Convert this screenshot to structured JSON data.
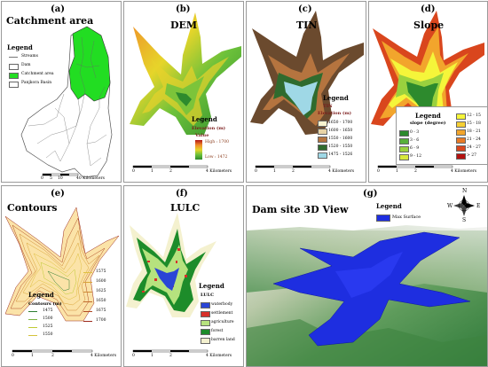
{
  "panels": {
    "a": {
      "letter": "(a)",
      "title": "Catchment area",
      "legend_title": "Legend",
      "legend": [
        "Streams",
        "Dam",
        "Catchment area",
        "Panjkora Basin"
      ],
      "scale": "40 Kilometers",
      "scale_ticks": [
        "0",
        "5",
        "10",
        "20"
      ]
    },
    "b": {
      "letter": "(b)",
      "title": "DEM",
      "legend_title": "Legend",
      "legend_sub": "Elevation (m)",
      "legend_value": "Value",
      "high": "High : 1700",
      "low": "Low : 1472",
      "scale": "4 Kilometers",
      "scale_ticks": [
        "0",
        "1",
        "2"
      ]
    },
    "c": {
      "letter": "(c)",
      "title": "TIN",
      "legend_title": "Legend",
      "legend_sub1": "TIN",
      "legend_sub2": "Elevation (m)",
      "classes": [
        "1650 - 1700",
        "1600 - 1650",
        "1550 - 1600",
        "1520 - 1550",
        "1475 - 1526"
      ],
      "colors": [
        "#f7f3d0",
        "#e8d3a6",
        "#b5743f",
        "#2f6b2e",
        "#9fd8e6"
      ],
      "scale": "4 Kilometers",
      "scale_ticks": [
        "0",
        "1",
        "2"
      ]
    },
    "d": {
      "letter": "(d)",
      "title": "Slope",
      "legend_title": "Legend",
      "legend_sub": "slope (degree)",
      "classes_left": [
        "0 - 3",
        "3 - 6",
        "6 - 9",
        "9 - 12"
      ],
      "colors_left": [
        "#2d8a2d",
        "#58b03a",
        "#9ad13e",
        "#d8e83c"
      ],
      "classes_right": [
        "12 - 15",
        "15 - 18",
        "18 - 21",
        "21 - 24",
        "24 - 27",
        "> 27"
      ],
      "colors_right": [
        "#f5f53a",
        "#f5cf34",
        "#f2a52c",
        "#e87a25",
        "#d9461d",
        "#b4110f"
      ],
      "scale": "4 Kilometers",
      "scale_ticks": [
        "0",
        "1",
        "2"
      ]
    },
    "e": {
      "letter": "(e)",
      "title": "Contours",
      "legend_title": "Legend",
      "legend_sub": "Contours (m)",
      "classes_left": [
        "1475",
        "1500",
        "1525",
        "1550"
      ],
      "colors_left": [
        "#2e7d32",
        "#7cb342",
        "#c0ca33",
        "#d4c23a"
      ],
      "classes_right": [
        "1575",
        "1600",
        "1625",
        "1650",
        "1675",
        "1700"
      ],
      "colors_right": [
        "#e0c040",
        "#d9a53a",
        "#cf8a36",
        "#c06a2e",
        "#b04a24",
        "#9c2a1c"
      ],
      "scale": "4 Kilometers",
      "scale_ticks": [
        "0",
        "1",
        "2"
      ]
    },
    "f": {
      "letter": "(f)",
      "title": "LULC",
      "legend_title": "Legend",
      "legend_sub": "LULC",
      "classes": [
        "waterbody",
        "settlement",
        "agriculture",
        "forest",
        "barren land"
      ],
      "colors": [
        "#2a45d6",
        "#d8302a",
        "#b6e27e",
        "#1d8c2a",
        "#f4f1cf"
      ],
      "scale": "4 Kilometers",
      "scale_ticks": [
        "0",
        "1",
        "2"
      ]
    },
    "g": {
      "letter": "(g)",
      "title": "Dam site 3D View",
      "legend_title": "Legend",
      "legend_item": "Max Surface",
      "compass": {
        "n": "N",
        "s": "S",
        "e": "E",
        "w": "W"
      }
    }
  }
}
